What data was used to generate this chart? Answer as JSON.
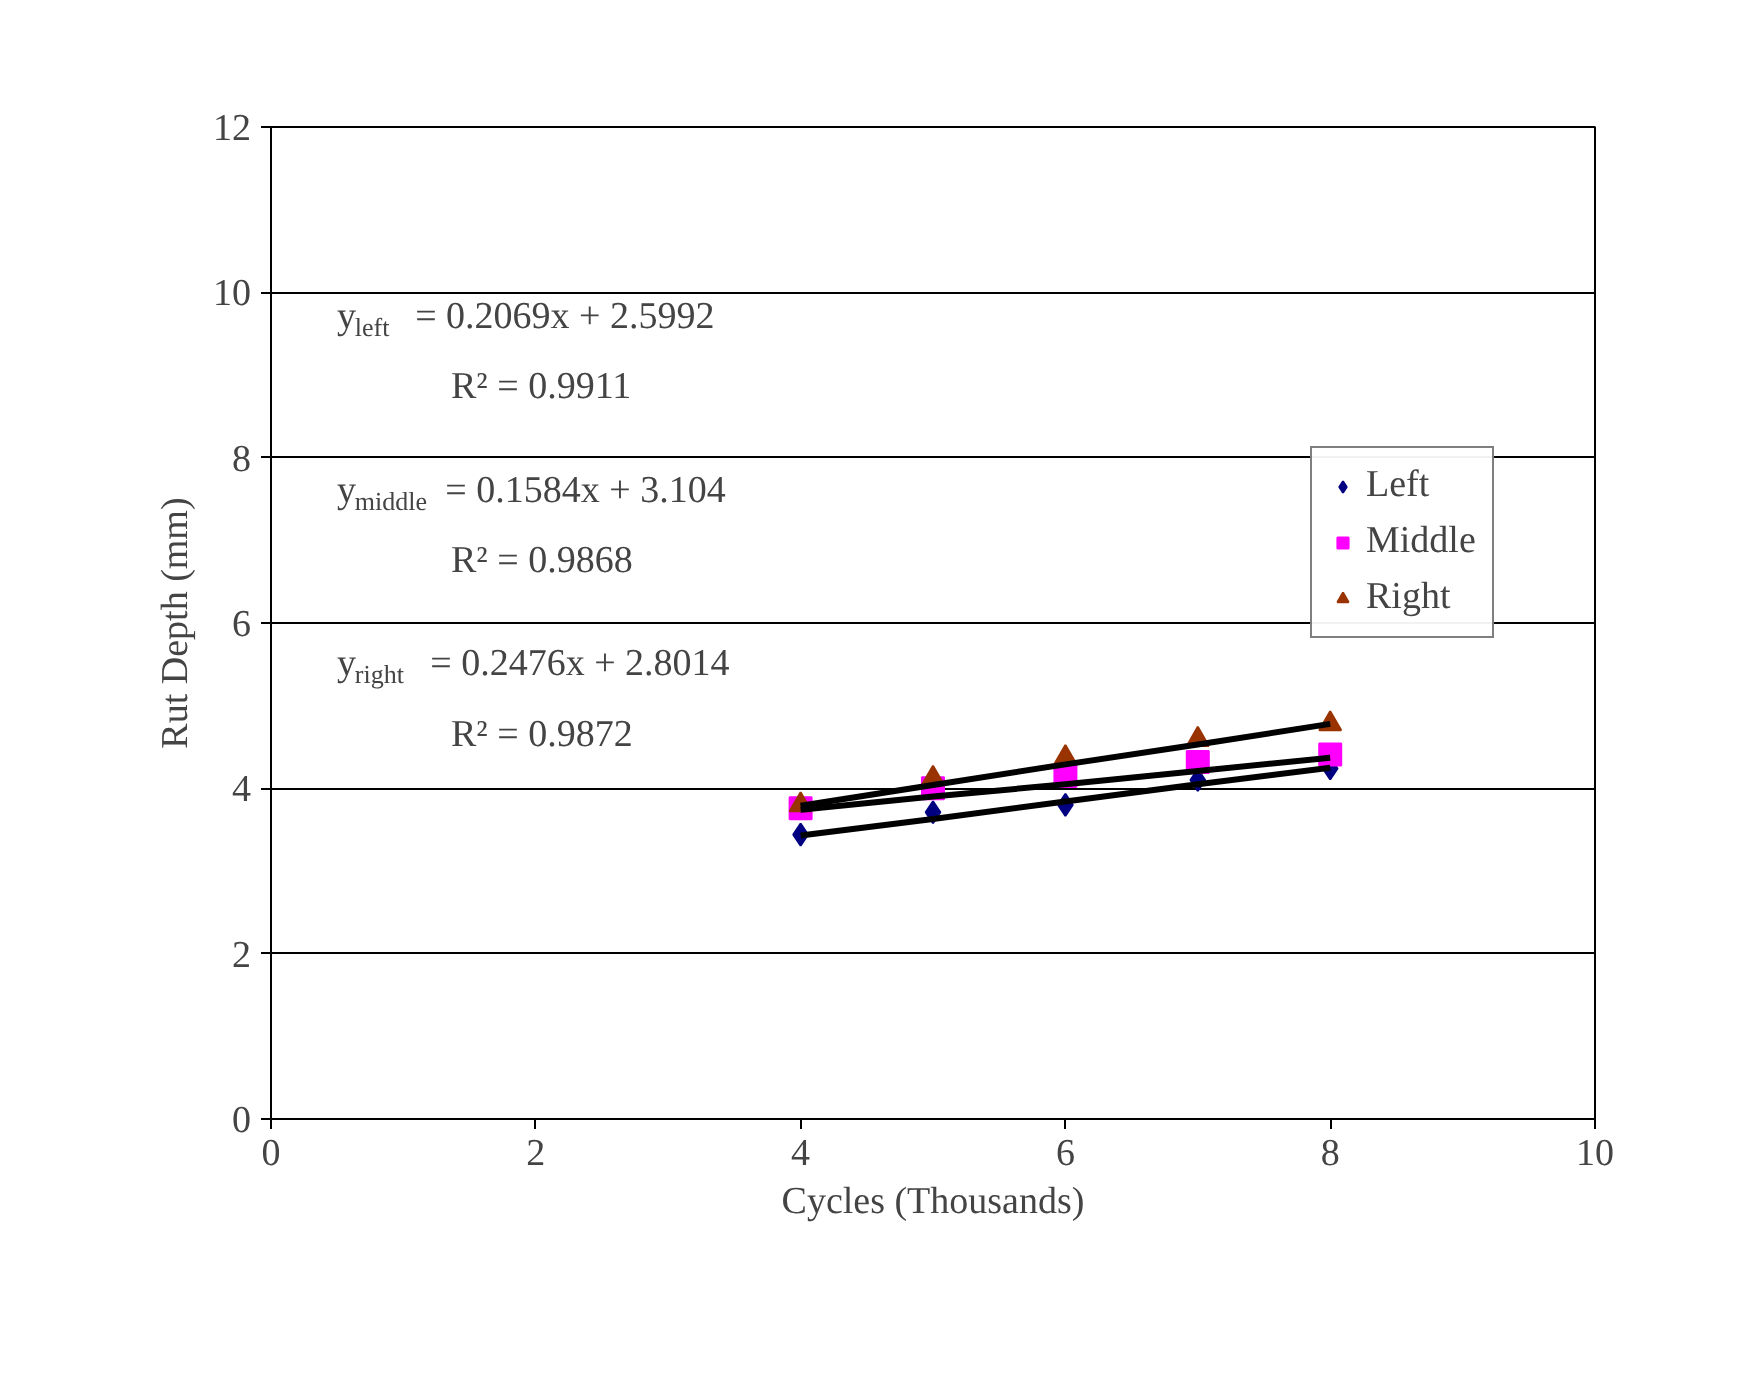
{
  "chart_data": {
    "type": "scatter",
    "xlabel": "Cycles (Thousands)",
    "ylabel": "Rut Depth (mm)",
    "xlim": [
      0,
      10
    ],
    "xticks": [
      0,
      2,
      4,
      6,
      8,
      10
    ],
    "ylim": [
      0,
      12
    ],
    "yticks": [
      0,
      2,
      4,
      6,
      8,
      10,
      12
    ],
    "grid": "y",
    "legend": "right",
    "x": [
      4,
      5,
      6,
      7,
      8
    ],
    "series": [
      {
        "name": "Left",
        "color": "#000080",
        "marker": "diamond",
        "values": [
          3.44,
          3.71,
          3.8,
          4.1,
          4.24
        ]
      },
      {
        "name": "Middle",
        "color": "#ff00ff",
        "marker": "square",
        "values": [
          3.76,
          4.0,
          4.15,
          4.32,
          4.41
        ]
      },
      {
        "name": "Right",
        "color": "#993300",
        "marker": "triangle",
        "values": [
          3.8,
          4.12,
          4.37,
          4.59,
          4.78
        ]
      },
      {
        "type": "line",
        "color": "#000000",
        "marker": "none",
        "values": [
          3.43,
          3.63,
          3.84,
          4.05,
          4.25
        ]
      },
      {
        "type": "line",
        "color": "#000000",
        "marker": "none",
        "values": [
          3.74,
          3.9,
          4.05,
          4.21,
          4.37
        ]
      },
      {
        "type": "line",
        "color": "#000000",
        "marker": "none",
        "values": [
          3.79,
          4.04,
          4.29,
          4.53,
          4.78
        ]
      }
    ],
    "annotations": [
      "y$_{left}$ = 0.2069x + 2.5992",
      "R² = 0.9911",
      "y$_{middle}$ = 0.1584x + 3.104",
      "R² = 0.9868",
      "y$_{right}$ = 0.2476x + 2.8014",
      "R² = 0.9872"
    ]
  }
}
